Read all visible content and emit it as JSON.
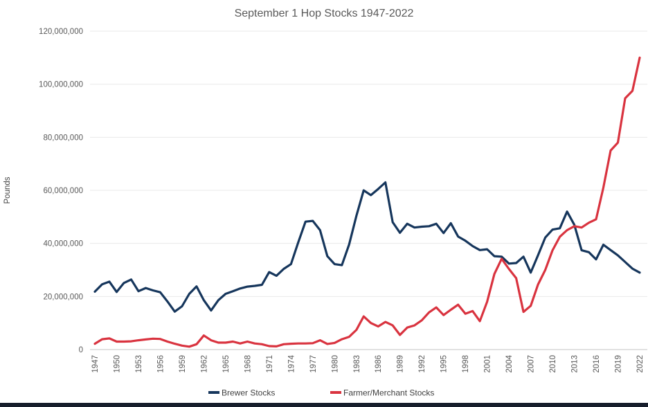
{
  "chart": {
    "title": "September 1 Hop Stocks 1947-2022",
    "y_axis_title": "Pounds",
    "legend": {
      "brewer_label": "Brewer Stocks",
      "farmer_label": "Farmer/Merchant Stocks"
    }
  },
  "colors": {
    "brewer_line": "#16365C",
    "farmer_line": "#D9333F",
    "gridline": "#E9E9E9",
    "axis_line": "#C6C6C6",
    "text_gray": "#595959",
    "bottom_bar": "#161D2B"
  },
  "chart_data": {
    "type": "line",
    "title": "September 1 Hop Stocks 1947-2022",
    "xlabel": "",
    "ylabel": "Pounds",
    "unit": "pounds (values stored in millions)",
    "grid": true,
    "legend_position": "bottom",
    "ylim_millions": [
      0,
      120
    ],
    "y_ticks_millions": [
      0,
      20,
      40,
      60,
      80,
      100,
      120
    ],
    "y_tick_labels": [
      "0",
      "20,000,000",
      "40,000,000",
      "60,000,000",
      "80,000,000",
      "100,000,000",
      "120,000,000"
    ],
    "x_start_year": 1947,
    "x_end_year": 2022,
    "x_tick_labels": [
      "1947",
      "1950",
      "1953",
      "1956",
      "1959",
      "1962",
      "1965",
      "1968",
      "1971",
      "1974",
      "1977",
      "1980",
      "1983",
      "1986",
      "1989",
      "1992",
      "1995",
      "1998",
      "2001",
      "2004",
      "2007",
      "2010",
      "2013",
      "2016",
      "2019",
      "2022"
    ],
    "series": [
      {
        "name": "Brewer Stocks",
        "color": "#16365C",
        "values_millions": [
          21.8,
          24.6,
          25.6,
          21.7,
          25.1,
          26.4,
          22.0,
          23.2,
          22.3,
          21.6,
          18.1,
          14.3,
          16.3,
          21.0,
          23.8,
          18.6,
          14.7,
          18.6,
          21.0,
          22.0,
          23.0,
          23.7,
          24.0,
          24.4,
          29.2,
          27.8,
          30.4,
          32.2,
          40.4,
          48.2,
          48.5,
          45.0,
          35.2,
          32.2,
          31.8,
          39.6,
          50.4,
          60.0,
          58.2,
          60.5,
          63.0,
          48.0,
          44.0,
          47.4,
          46.0,
          46.3,
          46.5,
          47.4,
          43.9,
          47.6,
          42.6,
          41.0,
          39.0,
          37.5,
          37.8,
          35.2,
          35.0,
          32.4,
          32.6,
          35.0,
          29.0,
          35.5,
          42.2,
          45.2,
          45.7,
          52.0,
          47.0,
          37.4,
          36.7,
          34.0,
          39.5,
          37.5,
          35.5,
          33.0,
          30.5,
          29.0
        ]
      },
      {
        "name": "Farmer/Merchant Stocks",
        "color": "#D9333F",
        "values_millions": [
          2.2,
          3.9,
          4.2,
          3.0,
          3.0,
          3.1,
          3.5,
          3.8,
          4.1,
          4.0,
          3.0,
          2.2,
          1.5,
          1.1,
          2.0,
          5.3,
          3.5,
          2.6,
          2.6,
          3.0,
          2.3,
          3.0,
          2.3,
          2.0,
          1.3,
          1.2,
          2.0,
          2.2,
          2.3,
          2.3,
          2.4,
          3.5,
          2.1,
          2.5,
          3.9,
          4.8,
          7.4,
          12.5,
          10.0,
          8.7,
          10.4,
          9.1,
          5.5,
          8.3,
          9.1,
          11.0,
          14.0,
          15.9,
          13.0,
          15.0,
          16.9,
          13.5,
          14.5,
          10.7,
          18.0,
          28.5,
          34.2,
          30.4,
          26.9,
          14.2,
          16.5,
          24.5,
          30.0,
          37.4,
          42.5,
          45.0,
          46.5,
          46.0,
          47.8,
          49.1,
          61.0,
          75.0,
          78.0,
          94.7,
          97.5,
          110.0
        ]
      }
    ]
  }
}
